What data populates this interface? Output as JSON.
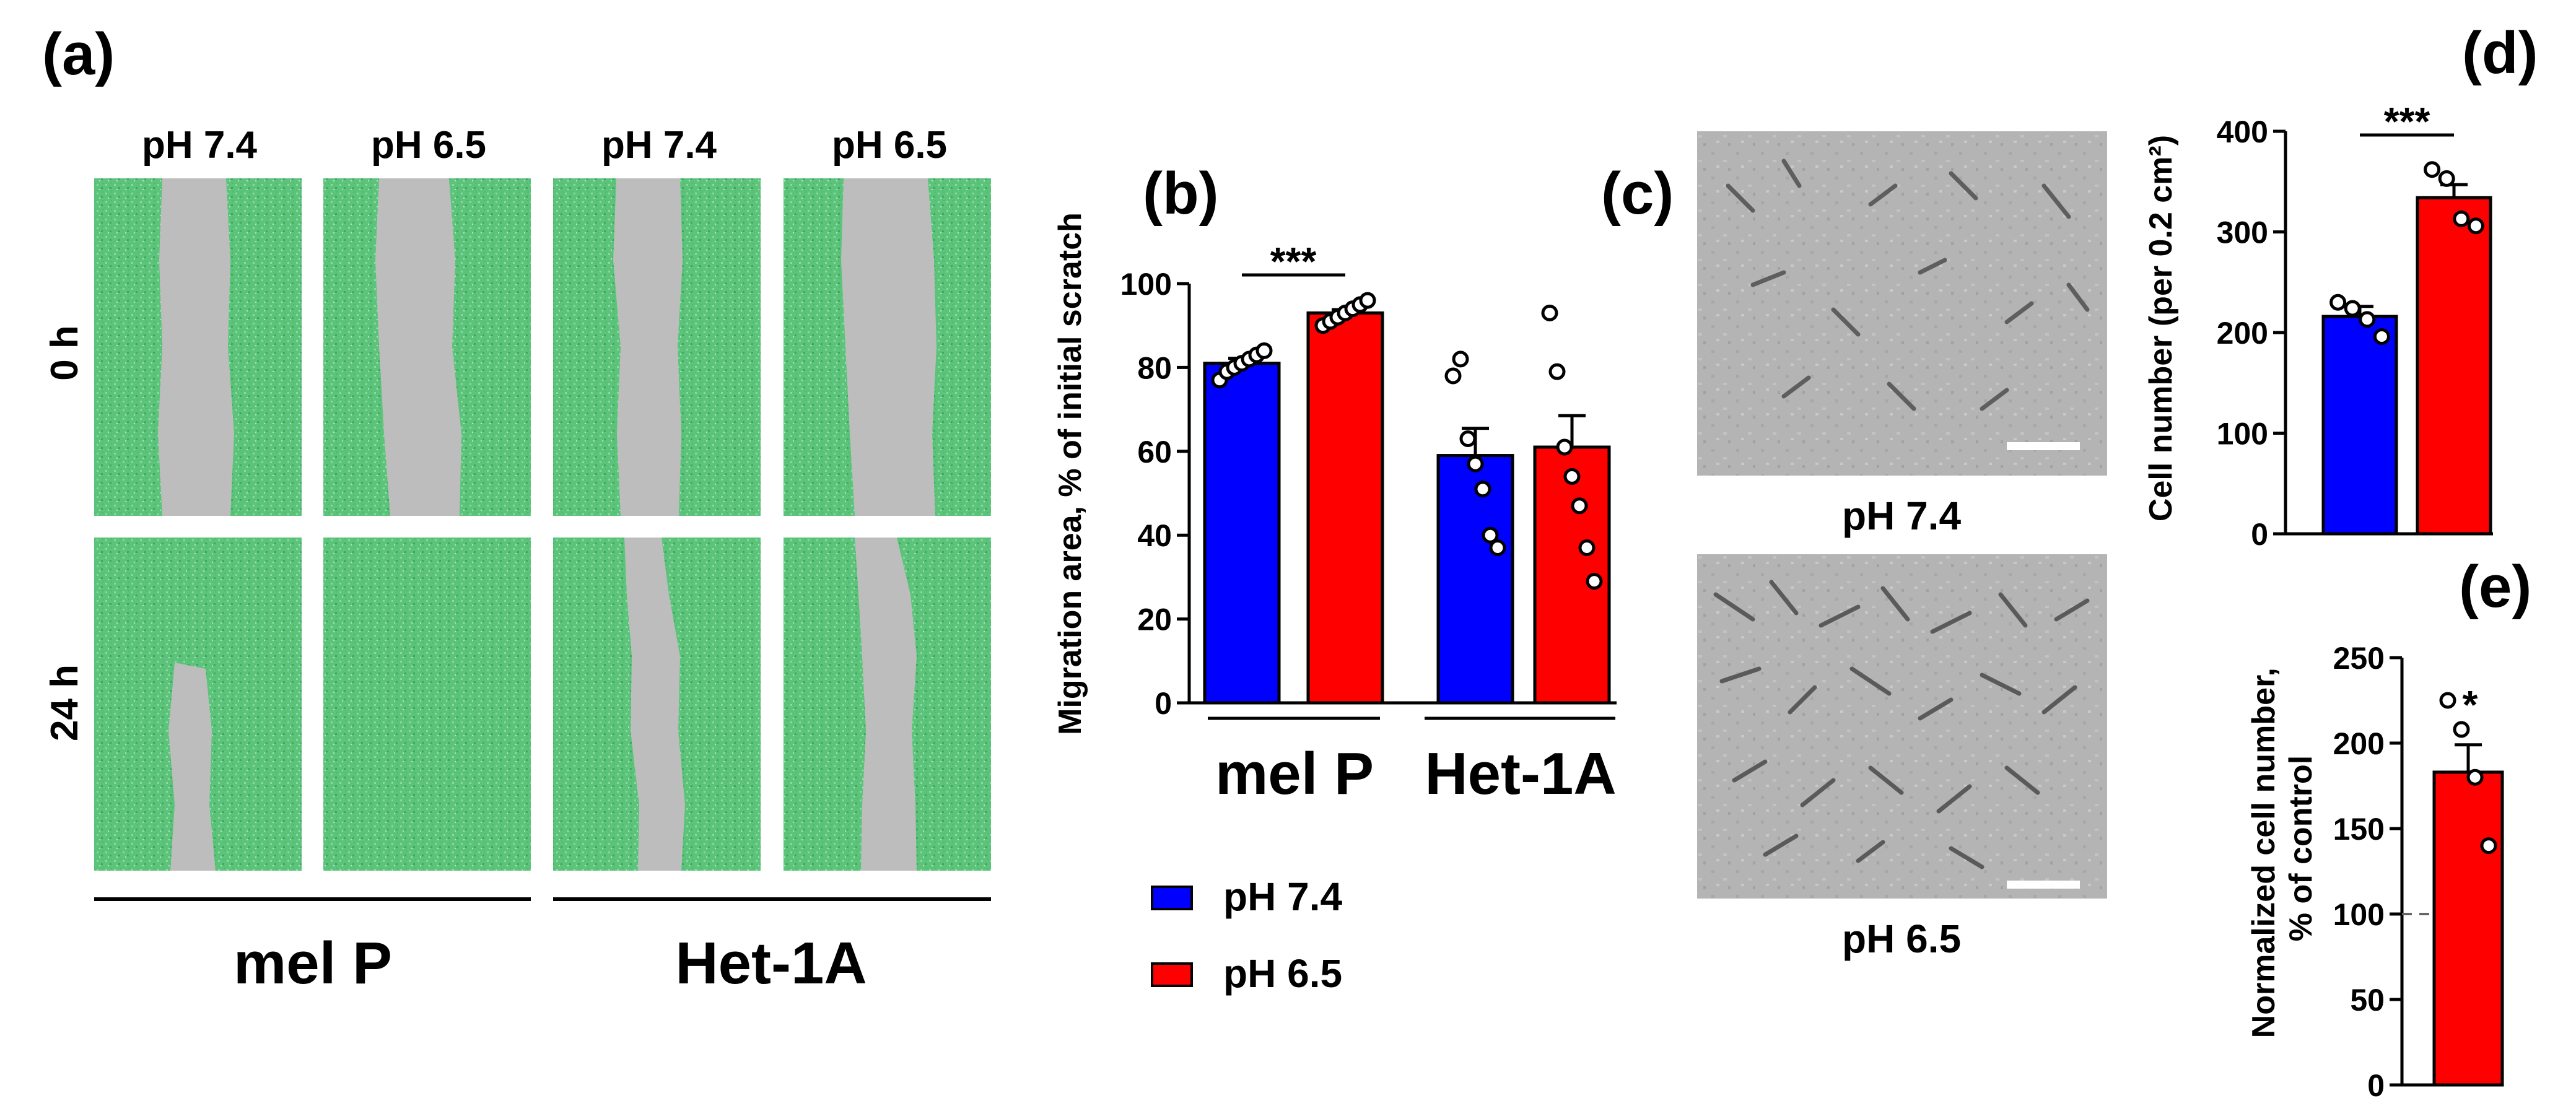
{
  "panels": {
    "a": {
      "letter": "(a)"
    },
    "b": {
      "letter": "(b)"
    },
    "c": {
      "letter": "(c)"
    },
    "d": {
      "letter": "(d)"
    },
    "e": {
      "letter": "(e)"
    }
  },
  "panel_a": {
    "columns": [
      "pH 7.4",
      "pH 6.5",
      "pH 7.4",
      "pH 6.5"
    ],
    "rows": [
      "0 h",
      "24 h"
    ],
    "groups": [
      "mel P",
      "Het-1A"
    ],
    "mask_color": "#5cc47a",
    "scratch_color": "#bdbdbd"
  },
  "panel_c": {
    "captions": [
      "pH 7.4",
      "pH 6.5"
    ]
  },
  "legend": [
    {
      "label": "pH 7.4",
      "color": "#0000ff"
    },
    {
      "label": "pH 6.5",
      "color": "#ff0000"
    }
  ],
  "chart_data": [
    {
      "panel": "b",
      "type": "bar",
      "ylabel": "Migration area, % of initial scratch",
      "ylim": [
        0,
        100
      ],
      "yticks": [
        "0",
        "20",
        "40",
        "60",
        "80",
        "100"
      ],
      "groups": [
        "mel P",
        "Het-1A"
      ],
      "significance": "***",
      "bars": [
        {
          "group": "mel P",
          "condition": "pH 7.4",
          "color": "#0000ff",
          "mean": 81,
          "sem": 1.2,
          "points": [
            77,
            79,
            80,
            81,
            82,
            83,
            84
          ]
        },
        {
          "group": "mel P",
          "condition": "pH 6.5",
          "color": "#ff0000",
          "mean": 93,
          "sem": 0.8,
          "points": [
            90,
            91,
            92,
            93,
            94,
            95,
            96
          ]
        },
        {
          "group": "Het-1A",
          "condition": "pH 7.4",
          "color": "#0000ff",
          "mean": 59,
          "sem": 6.5,
          "points": [
            78,
            82,
            63,
            57,
            51,
            40,
            37
          ]
        },
        {
          "group": "Het-1A",
          "condition": "pH 6.5",
          "color": "#ff0000",
          "mean": 61,
          "sem": 7.5,
          "points": [
            93,
            79,
            61,
            54,
            47,
            37,
            29
          ]
        }
      ]
    },
    {
      "panel": "d",
      "type": "bar",
      "ylabel": "Cell number (per 0.2 cm²)",
      "ylim": [
        0,
        400
      ],
      "yticks": [
        "0",
        "100",
        "200",
        "300",
        "400"
      ],
      "significance": "***",
      "bars": [
        {
          "condition": "pH 7.4",
          "color": "#0000ff",
          "mean": 216,
          "sem": 10,
          "points": [
            230,
            224,
            213,
            196
          ]
        },
        {
          "condition": "pH 6.5",
          "color": "#ff0000",
          "mean": 334,
          "sem": 13,
          "points": [
            362,
            353,
            313,
            306
          ]
        }
      ]
    },
    {
      "panel": "e",
      "type": "bar",
      "ylabel": "Normalized cell number, % of control",
      "ylim": [
        0,
        250
      ],
      "yticks": [
        "0",
        "50",
        "100",
        "150",
        "200",
        "250"
      ],
      "reference_line": 100,
      "significance": "*",
      "bars": [
        {
          "condition": "pH 6.5",
          "color": "#ff0000",
          "mean": 183,
          "sem": 16,
          "points": [
            225,
            208,
            180,
            140
          ]
        }
      ]
    }
  ]
}
